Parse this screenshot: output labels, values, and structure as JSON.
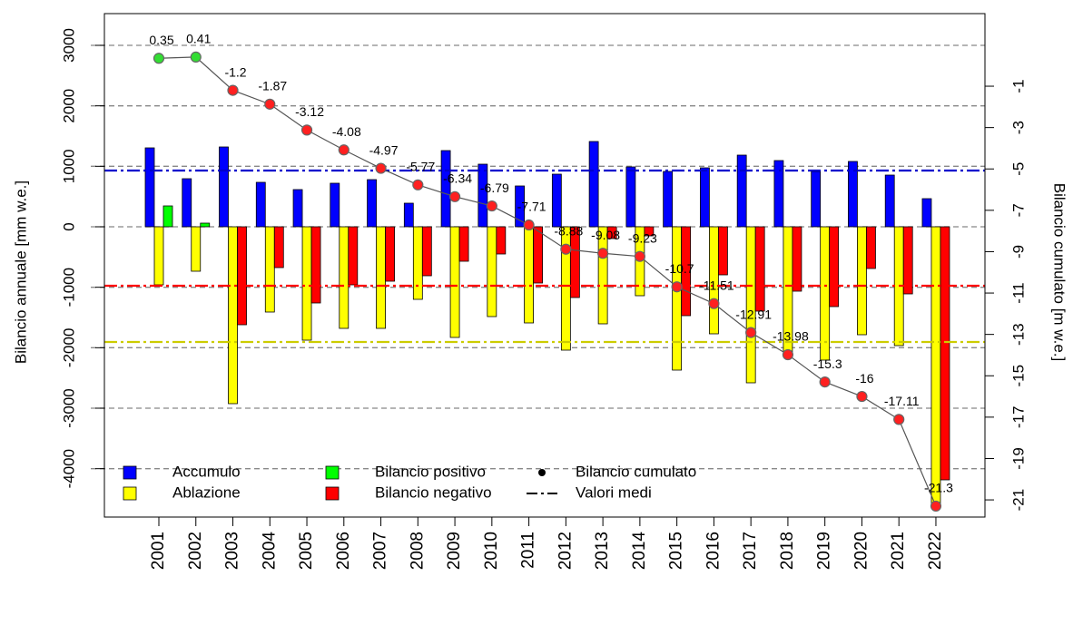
{
  "chart_data": {
    "type": "bar",
    "categories": [
      "2001",
      "2002",
      "2003",
      "2004",
      "2005",
      "2006",
      "2007",
      "2008",
      "2009",
      "2010",
      "2011",
      "2012",
      "2013",
      "2014",
      "2015",
      "2016",
      "2017",
      "2018",
      "2019",
      "2020",
      "2021",
      "2022"
    ],
    "series": [
      {
        "name": "Accumulo",
        "color": "#0000ff",
        "values": [
          1305,
          795,
          1320,
          735,
          615,
          720,
          780,
          390,
          1260,
          1035,
          675,
          870,
          1410,
          990,
          915,
          975,
          1185,
          1095,
          915,
          1080,
          855,
          465
        ]
      },
      {
        "name": "Ablazione",
        "color": "#ffff00",
        "values": [
          -960,
          -735,
          -2925,
          -1410,
          -1875,
          -1680,
          -1680,
          -1200,
          -1830,
          -1485,
          -1590,
          -2040,
          -1605,
          -1140,
          -2370,
          -1770,
          -2580,
          -2145,
          -2205,
          -1785,
          -1965,
          -4650
        ]
      },
      {
        "name": "Bilancio positivo",
        "color": "#00ff00",
        "values": [
          345,
          60,
          null,
          null,
          null,
          null,
          null,
          null,
          null,
          null,
          null,
          null,
          null,
          null,
          null,
          null,
          null,
          null,
          null,
          null,
          null,
          null
        ]
      },
      {
        "name": "Bilancio negativo",
        "color": "#ff0000",
        "values": [
          null,
          null,
          -1620,
          -675,
          -1260,
          -960,
          -900,
          -810,
          -570,
          -450,
          -930,
          -1170,
          -195,
          -150,
          -1470,
          -795,
          -1395,
          -1065,
          -1320,
          -690,
          -1110,
          -4185
        ]
      },
      {
        "name": "Bilancio cumulato",
        "type": "point",
        "axis": "y2",
        "line_color": "#555555",
        "colors": [
          "#33dd33",
          "#33dd33",
          "#ff2020",
          "#ff2020",
          "#ff2020",
          "#ff2020",
          "#ff2020",
          "#ff2020",
          "#ff2020",
          "#ff2020",
          "#ff2020",
          "#ff2020",
          "#ff2020",
          "#ff2020",
          "#ff2020",
          "#ff2020",
          "#ff2020",
          "#ff2020",
          "#ff2020",
          "#ff2020",
          "#ff2020",
          "#ff2020"
        ],
        "values": [
          0.35,
          0.41,
          -1.2,
          -1.87,
          -3.12,
          -4.08,
          -4.97,
          -5.77,
          -6.34,
          -6.79,
          -7.71,
          -8.88,
          -9.08,
          -9.23,
          -10.7,
          -11.51,
          -12.91,
          -13.98,
          -15.3,
          -16,
          -17.11,
          -21.3
        ]
      }
    ],
    "mean_label": "Valori medi",
    "mean_lines": [
      {
        "value": 930,
        "color": "#0000cc"
      },
      {
        "value": -975,
        "color": "#ff0000"
      },
      {
        "value": -1905,
        "color": "#cccc00"
      }
    ],
    "ylabel": "Bilancio annuale [mm w.e.]",
    "y2label": "Bilancio cumulato [m w.e.]",
    "ylim": [
      -4800,
      3525
    ],
    "yticks": [
      -4000,
      -3000,
      -2000,
      -1000,
      0,
      1000,
      2000,
      3000
    ],
    "y2lim": [
      -21.83,
      2.51
    ],
    "y2ticks": [
      -21,
      -19,
      -17,
      -15,
      -13,
      -11,
      -9,
      -7,
      -5,
      -3,
      -1
    ],
    "grid": true
  }
}
